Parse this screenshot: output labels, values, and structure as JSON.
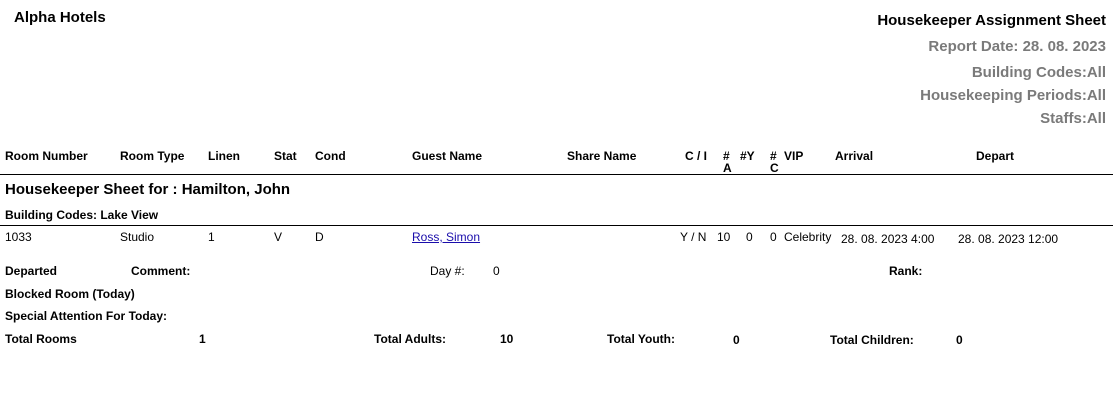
{
  "company": "Alpha Hotels",
  "title": "Housekeeper Assignment Sheet",
  "report_date": "Report Date:  28. 08. 2023",
  "building_codes": "Building Codes:All",
  "hk_periods": "Housekeeping Periods:All",
  "staffs": "Staffs:All",
  "columns": {
    "room_number": "Room Number",
    "room_type": "Room Type",
    "linen": "Linen",
    "stat": "Stat",
    "cond": "Cond",
    "guest_name": "Guest Name",
    "share_name": "Share Name",
    "ci": "C / I",
    "a1": "#",
    "a2": "A",
    "y": "#Y",
    "c1": "#",
    "c2": "C",
    "vip": "VIP",
    "arrival": "Arrival",
    "depart": "Depart"
  },
  "section_title": "Housekeeper Sheet for : Hamilton, John",
  "building": "Building Codes: Lake View",
  "row": {
    "room_number": "1033",
    "room_type": "Studio",
    "linen": "1",
    "stat": "V",
    "cond": "D",
    "guest_name": "Ross, Simon",
    "ci": "Y / N",
    "adults": "10",
    "youth": "0",
    "children": "0",
    "vip": "Celebrity",
    "arrival": "28. 08. 2023  4:00",
    "depart": "28. 08. 2023  12:00"
  },
  "details": {
    "departed": "Departed",
    "comment": "Comment:",
    "day_label": "Day #:",
    "day_value": "0",
    "rank": "Rank:",
    "blocked": "Blocked Room (Today)",
    "special": "Special Attention For Today:"
  },
  "totals": {
    "rooms_label": "Total Rooms",
    "rooms": "1",
    "adults_label": "Total Adults:",
    "adults": "10",
    "youth_label": "Total Youth:",
    "youth": "0",
    "children_label": "Total Children:",
    "children": "0"
  }
}
